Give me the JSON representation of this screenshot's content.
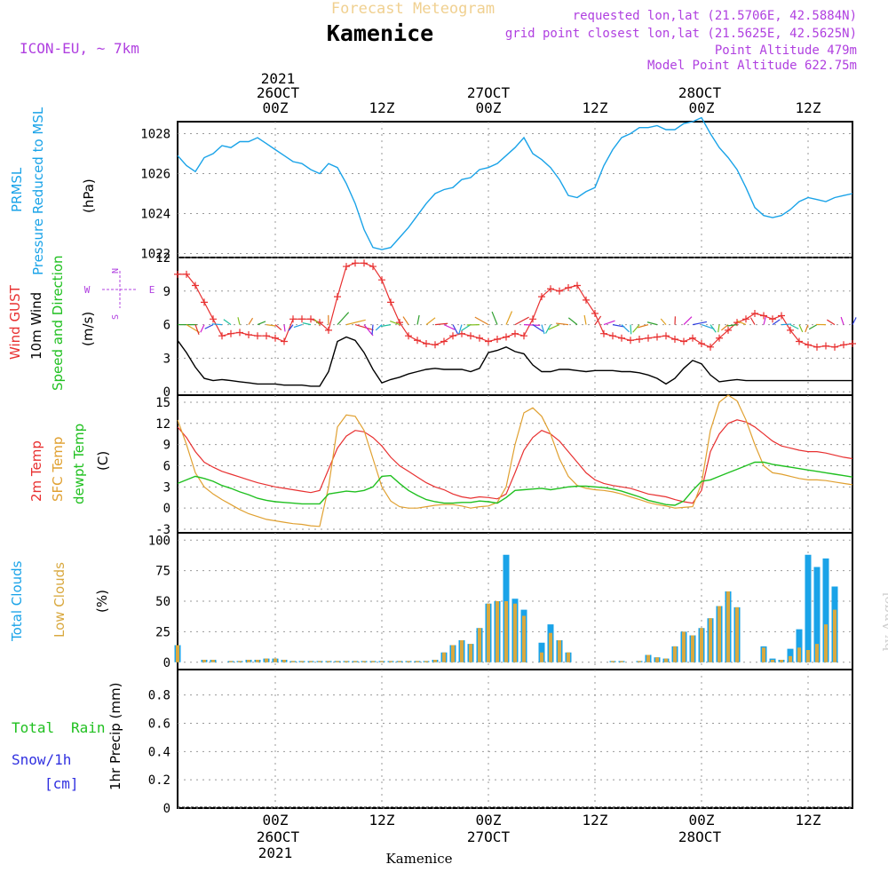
{
  "header": {
    "top_title": "Forecast Meteogram",
    "place_title": "Kamenice",
    "model": "ICON-EU, ~ 7km",
    "requested": "requested lon,lat (21.5706E, 42.5884N)",
    "gridpoint": "grid point closest lon,lat (21.5625E, 42.5625N)",
    "point_alt": "Point Altitude 479m",
    "model_alt": "Model Point Altitude 622.75m",
    "footer_name": "Kamenice",
    "watermark": "by Angel"
  },
  "time_axis": {
    "year": "2021",
    "date_labels": [
      "26OCT",
      "27OCT",
      "28OCT"
    ],
    "hour_labels": [
      "00Z",
      "12Z",
      "00Z",
      "12Z",
      "00Z",
      "12Z"
    ],
    "hour_positions": [
      15,
      27,
      39,
      51,
      63,
      75
    ],
    "range_hours": [
      4,
      80
    ]
  },
  "colors": {
    "pressure": "#1aa3e8",
    "gust": "#e83030",
    "wind": "#000000",
    "temp": "#e83030",
    "sfc_temp": "#e0a030",
    "dewpt": "#20c020",
    "total_cloud": "#1aa3e8",
    "low_cloud": "#d9a940",
    "precip_green": "#20c020",
    "precip_blue": "#3030e0",
    "purple": "#b040e0"
  },
  "panel_labels": {
    "pressure": [
      "PRMSL",
      "Pressure Reduced to MSL",
      "(hPa)"
    ],
    "wind": [
      "Wind GUST",
      "10m Wind",
      "Speed and Direction",
      "(m/s)"
    ],
    "compass": [
      "N",
      "S",
      "W",
      "E"
    ],
    "temp": [
      "2m Temp",
      "SFC Temp",
      "dewpt Temp",
      "(C)"
    ],
    "clouds": [
      "Total Clouds",
      "Low Clouds",
      "(%)"
    ],
    "precip": [
      "Total",
      "Rain",
      "Snow/1h",
      "[cm]",
      "1hr Precip (mm)"
    ]
  },
  "chart_data": [
    {
      "type": "line",
      "title": "PRMSL Pressure Reduced to MSL",
      "ylabel": "(hPa)",
      "ylim": [
        1021.8,
        1028.6
      ],
      "yticks": [
        1022,
        1024,
        1026,
        1028
      ],
      "series": [
        {
          "name": "PRMSL",
          "x": [
            4,
            5,
            6,
            7,
            8,
            9,
            10,
            11,
            12,
            13,
            14,
            15,
            16,
            17,
            18,
            19,
            20,
            21,
            22,
            23,
            24,
            25,
            26,
            27,
            28,
            29,
            30,
            31,
            32,
            33,
            34,
            35,
            36,
            37,
            38,
            39,
            40,
            41,
            42,
            43,
            44,
            45,
            46,
            47,
            48,
            49,
            50,
            51,
            52,
            53,
            54,
            55,
            56,
            57,
            58,
            59,
            60,
            61,
            62,
            63,
            64,
            65,
            66,
            67,
            68,
            69,
            70,
            71,
            72,
            73,
            74,
            75,
            76,
            77,
            78,
            79,
            80
          ],
          "values": [
            1026.9,
            1026.4,
            1026.1,
            1026.8,
            1027.0,
            1027.4,
            1027.3,
            1027.6,
            1027.6,
            1027.8,
            1027.5,
            1027.2,
            1026.9,
            1026.6,
            1026.5,
            1026.2,
            1026.0,
            1026.5,
            1026.3,
            1025.5,
            1024.5,
            1023.2,
            1022.3,
            1022.2,
            1022.3,
            1022.8,
            1023.3,
            1023.9,
            1024.5,
            1025.0,
            1025.2,
            1025.3,
            1025.7,
            1025.8,
            1026.2,
            1026.3,
            1026.5,
            1026.9,
            1027.3,
            1027.8,
            1027.0,
            1026.7,
            1026.3,
            1025.7,
            1024.9,
            1024.8,
            1025.1,
            1025.3,
            1026.4,
            1027.2,
            1027.8,
            1028.0,
            1028.3,
            1028.3,
            1028.4,
            1028.2,
            1028.2,
            1028.5,
            1028.6,
            1028.8,
            1028.0,
            1027.3,
            1026.8,
            1026.2,
            1025.3,
            1024.3,
            1023.9,
            1023.8,
            1023.9,
            1024.2,
            1024.6,
            1024.8,
            1024.7,
            1024.6,
            1024.8,
            1024.9,
            1025.0
          ]
        }
      ]
    },
    {
      "type": "line",
      "title": "Wind GUST / 10m Wind Speed and Direction",
      "ylabel": "(m/s)",
      "ylim": [
        -0.3,
        12
      ],
      "yticks": [
        0,
        3,
        6,
        9,
        12
      ],
      "x": [
        4,
        5,
        6,
        7,
        8,
        9,
        10,
        11,
        12,
        13,
        14,
        15,
        16,
        17,
        18,
        19,
        20,
        21,
        22,
        23,
        24,
        25,
        26,
        27,
        28,
        29,
        30,
        31,
        32,
        33,
        34,
        35,
        36,
        37,
        38,
        39,
        40,
        41,
        42,
        43,
        44,
        45,
        46,
        47,
        48,
        49,
        50,
        51,
        52,
        53,
        54,
        55,
        56,
        57,
        58,
        59,
        60,
        61,
        62,
        63,
        64,
        65,
        66,
        67,
        68,
        69,
        70,
        71,
        72,
        73,
        74,
        75,
        76,
        77,
        78,
        79,
        80
      ],
      "series": [
        {
          "name": "Wind GUST",
          "values": [
            10.5,
            10.5,
            9.5,
            8.0,
            6.5,
            5.0,
            5.2,
            5.3,
            5.1,
            5.0,
            5.0,
            4.8,
            4.5,
            6.5,
            6.5,
            6.5,
            6.2,
            5.5,
            8.5,
            11.2,
            11.5,
            11.5,
            11.2,
            10.0,
            8.0,
            6.2,
            5.0,
            4.6,
            4.3,
            4.2,
            4.5,
            5.0,
            5.2,
            5.0,
            4.8,
            4.5,
            4.7,
            4.9,
            5.2,
            5.0,
            6.5,
            8.5,
            9.2,
            9.0,
            9.3,
            9.5,
            8.2,
            7.0,
            5.2,
            5.0,
            4.8,
            4.6,
            4.7,
            4.8,
            4.9,
            5.0,
            4.7,
            4.5,
            4.8,
            4.3,
            4.0,
            4.8,
            5.5,
            6.2,
            6.5,
            7.0,
            6.8,
            6.5,
            6.8,
            5.5,
            4.5,
            4.2,
            4.0,
            4.1,
            4.0,
            4.2,
            4.3
          ]
        },
        {
          "name": "10m Wind",
          "values": [
            4.6,
            3.5,
            2.2,
            1.2,
            1.0,
            1.1,
            1.0,
            0.9,
            0.8,
            0.7,
            0.7,
            0.7,
            0.6,
            0.6,
            0.6,
            0.5,
            0.5,
            1.8,
            4.5,
            4.9,
            4.6,
            3.5,
            2.0,
            0.8,
            1.1,
            1.3,
            1.6,
            1.8,
            2.0,
            2.1,
            2.0,
            2.0,
            2.0,
            1.8,
            2.1,
            3.5,
            3.7,
            4.0,
            3.6,
            3.4,
            2.4,
            1.8,
            1.8,
            2.0,
            2.0,
            1.9,
            1.8,
            1.9,
            1.9,
            1.9,
            1.8,
            1.8,
            1.7,
            1.5,
            1.2,
            0.7,
            1.2,
            2.1,
            2.8,
            2.5,
            1.5,
            0.9,
            1.0,
            1.1,
            1.0,
            1.0,
            1.0,
            1.0,
            1.0,
            1.0,
            1.0,
            1.0,
            1.0,
            1.0,
            1.0,
            1.0,
            1.0
          ]
        }
      ],
      "direction_arrows": "colored wind barbs along 6 m/s baseline"
    },
    {
      "type": "line",
      "title": "2m Temp / SFC Temp / dewpt Temp",
      "ylabel": "(C)",
      "ylim": [
        -3.5,
        16
      ],
      "yticks": [
        -3,
        0,
        3,
        6,
        9,
        12,
        15
      ],
      "x": [
        4,
        5,
        6,
        7,
        8,
        9,
        10,
        11,
        12,
        13,
        14,
        15,
        16,
        17,
        18,
        19,
        20,
        21,
        22,
        23,
        24,
        25,
        26,
        27,
        28,
        29,
        30,
        31,
        32,
        33,
        34,
        35,
        36,
        37,
        38,
        39,
        40,
        41,
        42,
        43,
        44,
        45,
        46,
        47,
        48,
        49,
        50,
        51,
        52,
        53,
        54,
        55,
        56,
        57,
        58,
        59,
        60,
        61,
        62,
        63,
        64,
        65,
        66,
        67,
        68,
        69,
        70,
        71,
        72,
        73,
        74,
        75,
        76,
        77,
        78,
        79,
        80
      ],
      "series": [
        {
          "name": "2m Temp",
          "values": [
            11.5,
            10.0,
            8.0,
            6.5,
            5.8,
            5.2,
            4.8,
            4.4,
            4.0,
            3.6,
            3.3,
            3.0,
            2.8,
            2.6,
            2.4,
            2.2,
            2.5,
            5.5,
            8.5,
            10.2,
            11.0,
            10.8,
            10.0,
            8.8,
            7.2,
            6.0,
            5.2,
            4.4,
            3.6,
            3.0,
            2.6,
            2.0,
            1.6,
            1.4,
            1.6,
            1.5,
            1.3,
            2.0,
            5.0,
            8.2,
            10.0,
            11.0,
            10.5,
            9.5,
            8.0,
            6.5,
            5.0,
            4.0,
            3.5,
            3.2,
            3.0,
            2.8,
            2.4,
            2.0,
            1.8,
            1.6,
            1.2,
            0.9,
            0.7,
            2.5,
            8.0,
            10.5,
            12.0,
            12.5,
            12.2,
            11.5,
            10.5,
            9.5,
            8.8,
            8.5,
            8.2,
            8.0,
            8.0,
            7.8,
            7.5,
            7.2,
            7.0
          ]
        },
        {
          "name": "SFC Temp",
          "values": [
            12.5,
            9.0,
            5.0,
            3.0,
            2.0,
            1.2,
            0.5,
            -0.2,
            -0.8,
            -1.2,
            -1.6,
            -1.8,
            -2.0,
            -2.2,
            -2.3,
            -2.5,
            -2.6,
            3.0,
            11.5,
            13.2,
            13.0,
            11.0,
            7.0,
            3.0,
            1.0,
            0.2,
            0.0,
            0.0,
            0.2,
            0.4,
            0.5,
            0.5,
            0.3,
            0.0,
            0.2,
            0.3,
            0.8,
            3.0,
            9.0,
            13.5,
            14.2,
            13.0,
            10.5,
            7.0,
            4.5,
            3.2,
            2.8,
            2.6,
            2.5,
            2.3,
            2.0,
            1.6,
            1.2,
            0.8,
            0.5,
            0.3,
            0.0,
            0.1,
            0.2,
            3.5,
            11.0,
            15.0,
            16.0,
            15.2,
            12.5,
            9.0,
            6.0,
            5.0,
            4.8,
            4.5,
            4.2,
            4.0,
            4.0,
            3.9,
            3.7,
            3.5,
            3.3
          ]
        },
        {
          "name": "dewpt Temp",
          "values": [
            3.5,
            4.0,
            4.5,
            4.2,
            3.8,
            3.2,
            2.8,
            2.3,
            1.9,
            1.4,
            1.1,
            0.9,
            0.8,
            0.7,
            0.6,
            0.6,
            0.6,
            2.0,
            2.2,
            2.4,
            2.3,
            2.5,
            3.0,
            4.5,
            4.6,
            3.5,
            2.5,
            1.8,
            1.2,
            0.9,
            0.7,
            0.7,
            0.8,
            0.8,
            1.0,
            0.9,
            0.7,
            1.5,
            2.5,
            2.6,
            2.7,
            2.8,
            2.6,
            2.8,
            3.0,
            3.1,
            3.1,
            3.0,
            2.9,
            2.7,
            2.4,
            2.0,
            1.6,
            1.1,
            0.8,
            0.5,
            0.4,
            1.0,
            2.5,
            3.8,
            4.0,
            4.5,
            5.0,
            5.5,
            6.0,
            6.5,
            6.5,
            6.2,
            6.0,
            5.8,
            5.6,
            5.4,
            5.2,
            5.0,
            4.8,
            4.6,
            4.4
          ]
        }
      ]
    },
    {
      "type": "bar",
      "title": "Total Clouds / Low Clouds",
      "ylabel": "(%)",
      "ylim": [
        -6,
        106
      ],
      "yticks": [
        0,
        25,
        50,
        75,
        100
      ],
      "x": [
        4,
        5,
        6,
        7,
        8,
        9,
        10,
        11,
        12,
        13,
        14,
        15,
        16,
        17,
        18,
        19,
        20,
        21,
        22,
        23,
        24,
        25,
        26,
        27,
        28,
        29,
        30,
        31,
        32,
        33,
        34,
        35,
        36,
        37,
        38,
        39,
        40,
        41,
        42,
        43,
        44,
        45,
        46,
        47,
        48,
        49,
        50,
        51,
        52,
        53,
        54,
        55,
        56,
        57,
        58,
        59,
        60,
        61,
        62,
        63,
        64,
        65,
        66,
        67,
        68,
        69,
        70,
        71,
        72,
        73,
        74,
        75,
        76,
        77,
        78,
        79,
        80
      ],
      "series": [
        {
          "name": "Total Clouds",
          "values": [
            14,
            0,
            0,
            2,
            2,
            0,
            1,
            1,
            2,
            2,
            3,
            3,
            2,
            1,
            1,
            1,
            1,
            1,
            1,
            1,
            1,
            1,
            1,
            1,
            1,
            1,
            1,
            1,
            1,
            2,
            8,
            14,
            18,
            15,
            28,
            48,
            50,
            88,
            52,
            43,
            0,
            16,
            31,
            18,
            8,
            0,
            0,
            0,
            0,
            1,
            1,
            0,
            1,
            6,
            4,
            3,
            13,
            25,
            22,
            28,
            36,
            46,
            58,
            45,
            0,
            0,
            13,
            3,
            2,
            11,
            27,
            88,
            78,
            85,
            62,
            0,
            0
          ],
          "note": "x positions of 4..80 are approximate fine-resolution steps"
        },
        {
          "name": "Low Clouds",
          "values": [
            14,
            0,
            0,
            2,
            2,
            0,
            1,
            1,
            2,
            2,
            3,
            3,
            2,
            1,
            1,
            1,
            1,
            1,
            1,
            1,
            1,
            1,
            1,
            1,
            1,
            1,
            1,
            1,
            1,
            2,
            8,
            14,
            18,
            15,
            28,
            48,
            50,
            50,
            48,
            38,
            0,
            8,
            24,
            18,
            8,
            0,
            0,
            0,
            0,
            1,
            1,
            0,
            1,
            6,
            4,
            3,
            13,
            25,
            22,
            28,
            36,
            46,
            58,
            45,
            0,
            0,
            12,
            2,
            2,
            5,
            12,
            10,
            15,
            31,
            43,
            0,
            0
          ]
        }
      ]
    },
    {
      "type": "bar",
      "title": "1hr Precip",
      "ylabel": "1hr Precip (mm)",
      "ylim": [
        0,
        0.98
      ],
      "yticks": [
        0,
        0.2,
        0.4,
        0.6,
        0.8
      ],
      "series": [
        {
          "name": "Total Rain",
          "values": []
        },
        {
          "name": "Snow/1h",
          "values": []
        }
      ]
    }
  ]
}
